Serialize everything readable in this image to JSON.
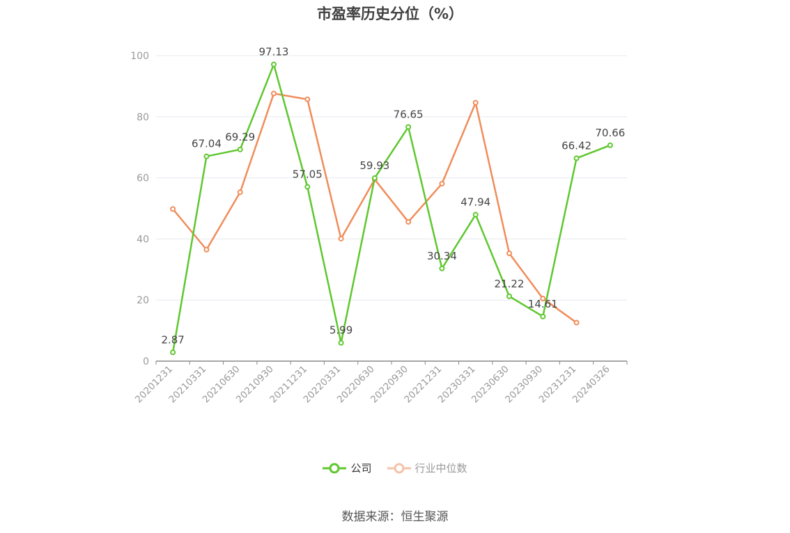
{
  "chart_data": {
    "type": "line",
    "title": "市盈率历史分位（%）",
    "categories": [
      "20201231",
      "20210331",
      "20210630",
      "20210930",
      "20211231",
      "20220331",
      "20220630",
      "20220930",
      "20221231",
      "20230331",
      "20230630",
      "20230930",
      "20231231",
      "20240326"
    ],
    "series": [
      {
        "name": "公司",
        "color": "#5ec72e",
        "values": [
          2.87,
          67.04,
          69.29,
          97.13,
          57.05,
          5.99,
          59.93,
          76.65,
          30.34,
          47.94,
          21.22,
          14.61,
          66.42,
          70.66
        ],
        "labels": [
          "2.87",
          "67.04",
          "69.29",
          "97.13",
          "57.05",
          "5.99",
          "59.93",
          "76.65",
          "30.34",
          "47.94",
          "21.22",
          "14.61",
          "66.42",
          "70.66"
        ]
      },
      {
        "name": "行业中位数",
        "color": "#f08c5a",
        "values": [
          49.8,
          36.5,
          55.3,
          87.6,
          85.7,
          40.1,
          59.5,
          45.6,
          58.1,
          84.6,
          35.3,
          20.5,
          12.6,
          null
        ]
      }
    ],
    "ylim": [
      0,
      100
    ],
    "yticks": [
      0,
      20,
      40,
      60,
      80,
      100
    ],
    "grid": true,
    "legend_position": "bottom-center"
  },
  "legend": {
    "company": "公司",
    "industry": "行业中位数"
  },
  "source": "数据来源：恒生聚源"
}
